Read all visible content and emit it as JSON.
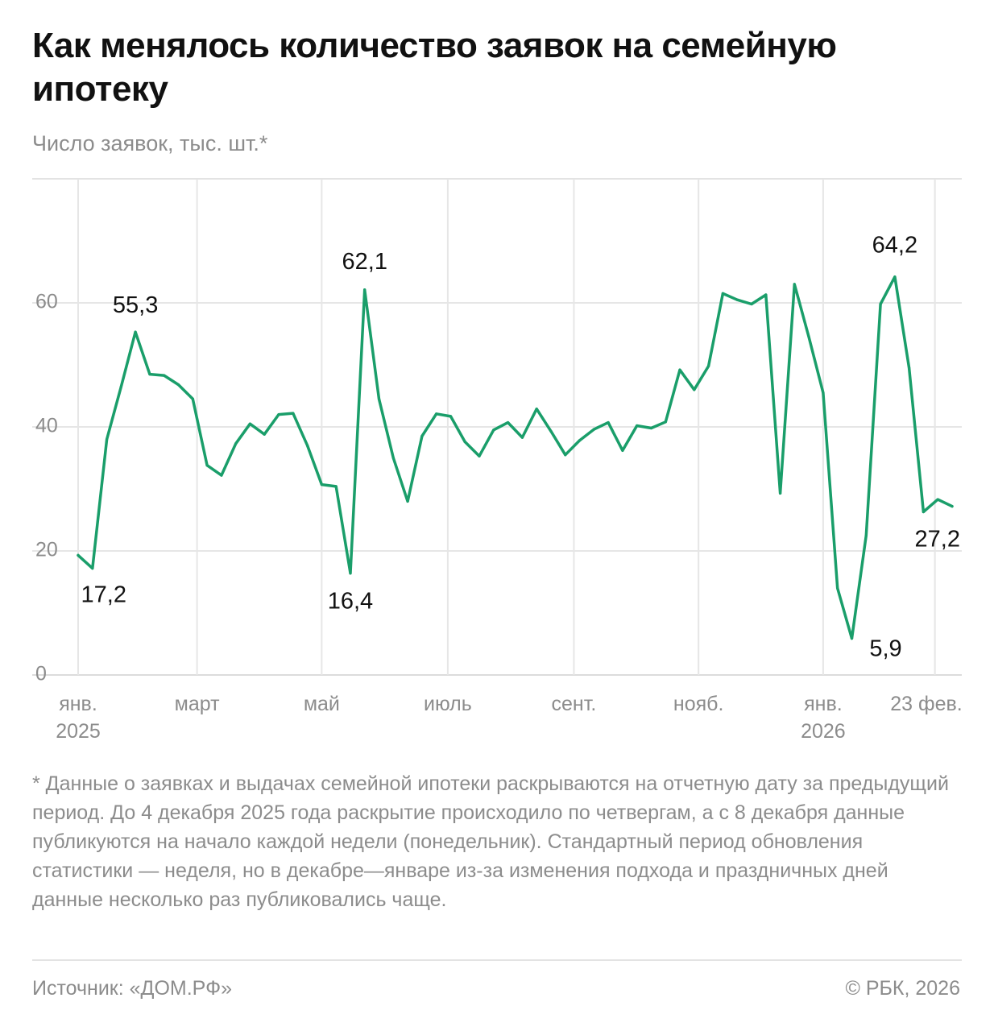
{
  "chart_data": {
    "type": "line",
    "title": "Как менялось количество заявок на семейную ипотеку",
    "subtitle": "Число заявок, тыс. шт.*",
    "ylim": [
      0,
      80
    ],
    "yticks": [
      {
        "value": 0,
        "label": "0"
      },
      {
        "value": 20,
        "label": "20"
      },
      {
        "value": 40,
        "label": "40"
      },
      {
        "value": 60,
        "label": "60"
      }
    ],
    "xticks": [
      {
        "index": 0,
        "label": "янв.",
        "sub": "2025"
      },
      {
        "index": 8.3,
        "label": "март",
        "sub": ""
      },
      {
        "index": 17,
        "label": "май",
        "sub": ""
      },
      {
        "index": 25.8,
        "label": "июль",
        "sub": ""
      },
      {
        "index": 34.6,
        "label": "сент.",
        "sub": ""
      },
      {
        "index": 43.3,
        "label": "нояб.",
        "sub": ""
      },
      {
        "index": 52,
        "label": "янв.",
        "sub": "2026"
      },
      {
        "index": 59.8,
        "label": "23 фев.",
        "sub": ""
      }
    ],
    "series": [
      {
        "name": "Число заявок, тыс. шт.",
        "color": "#1a9e6a",
        "values": [
          19.3,
          17.2,
          38,
          46.5,
          55.3,
          48.5,
          48.3,
          46.8,
          44.5,
          33.8,
          32.2,
          37.3,
          40.5,
          38.8,
          42,
          42.2,
          37,
          30.7,
          30.4,
          16.4,
          62.1,
          44.5,
          35,
          28,
          38.5,
          42.1,
          41.7,
          37.6,
          35.3,
          39.5,
          40.7,
          38.3,
          42.9,
          39.3,
          35.5,
          37.8,
          39.6,
          40.7,
          36.2,
          40.2,
          39.8,
          40.8,
          49.2,
          46,
          49.8,
          61.5,
          60.5,
          59.8,
          61.3,
          29.3,
          63,
          54.5,
          45.5,
          14,
          5.9,
          22.5,
          59.8,
          64.2,
          49.5,
          26.3,
          28.3,
          27.2
        ]
      }
    ],
    "annotations": [
      {
        "index": 1,
        "text": "17,2"
      },
      {
        "index": 4,
        "text": "55,3"
      },
      {
        "index": 19,
        "text": "16,4"
      },
      {
        "index": 20,
        "text": "62,1"
      },
      {
        "index": 54,
        "text": "5,9"
      },
      {
        "index": 57,
        "text": "64,2"
      },
      {
        "index": 61,
        "text": "27,2"
      }
    ],
    "grid": true
  },
  "footnote": "* Данные о заявках и выдачах семейной ипотеки раскрываются на отчетную дату за предыдущий период. До 4 декабря 2025 года раскрытие происходило по четвергам, а с 8 декабря данные публикуются на начало каждой недели (понедельник). Стандартный период обновления статистики — неделя, но в декабре—январе из-за изменения подхода и праздничных дней данные несколько раз публиковались чаще.",
  "source": "Источник: «ДОМ.РФ»",
  "copyright": "© РБК, 2026"
}
